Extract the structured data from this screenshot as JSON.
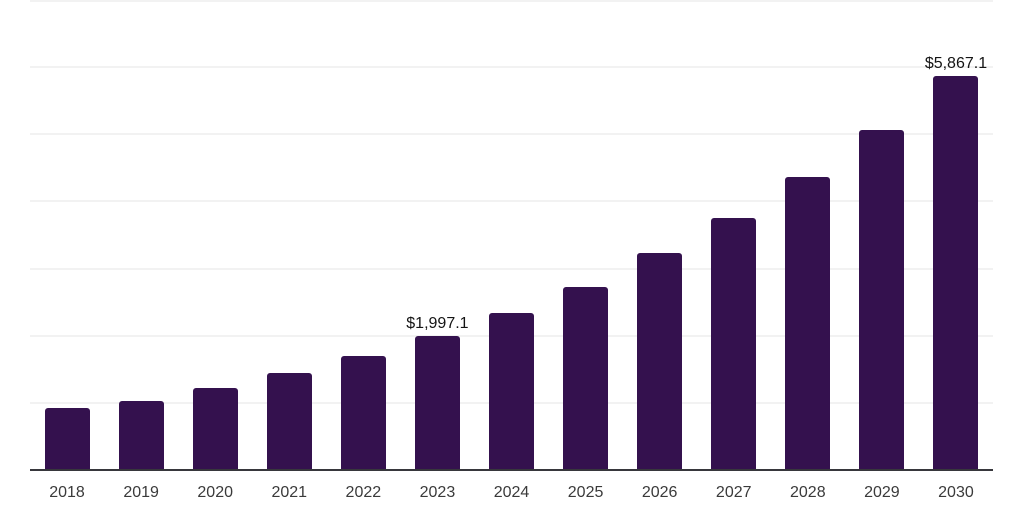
{
  "chart_data": {
    "type": "bar",
    "title": "",
    "xlabel": "",
    "ylabel": "",
    "categories": [
      "2018",
      "2019",
      "2020",
      "2021",
      "2022",
      "2023",
      "2024",
      "2025",
      "2026",
      "2027",
      "2028",
      "2029",
      "2030"
    ],
    "values": [
      920,
      1030,
      1220,
      1445,
      1700,
      1997.1,
      2340,
      2725,
      3230,
      3755,
      4365,
      5065,
      5867.1
    ],
    "data_labels": [
      "",
      "",
      "",
      "",
      "",
      "$1,997.1",
      "",
      "",
      "",
      "",
      "",
      "",
      "$5,867.1"
    ],
    "ylim": [
      0,
      7000
    ],
    "gridline_values": [
      1000,
      2000,
      3000,
      4000,
      5000,
      6000,
      7000
    ],
    "grid": true,
    "legend": false,
    "colors": {
      "bar": "#34114e",
      "gridline": "#f2f2f2",
      "axis_line": "#37373c",
      "tick_label": "#3a3a3a",
      "data_label": "#141414",
      "background": "#ffffff"
    }
  }
}
